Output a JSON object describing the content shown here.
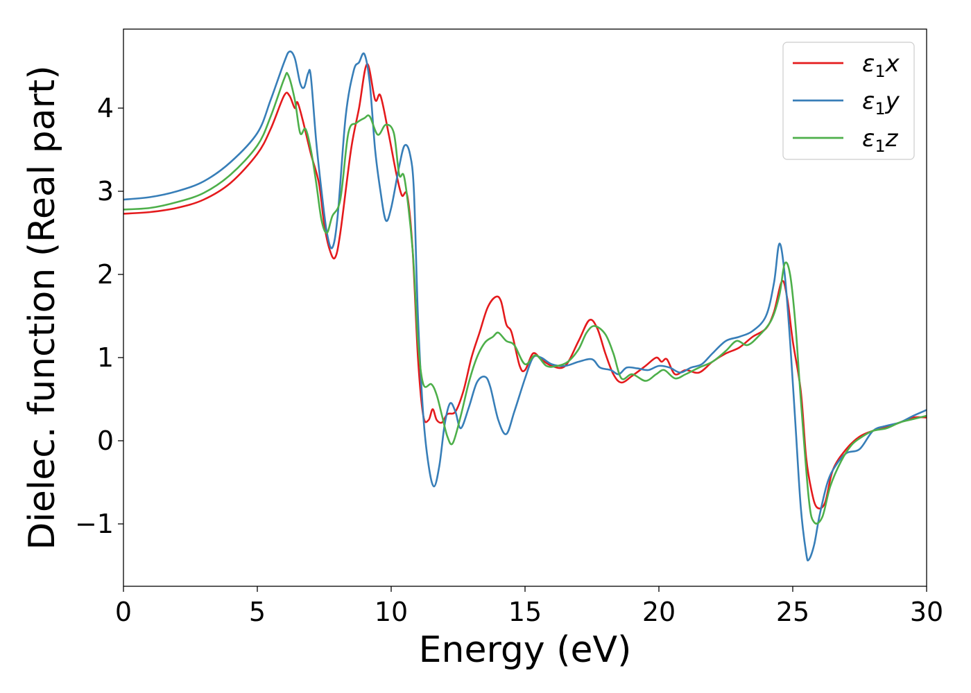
{
  "chart_data": {
    "type": "line",
    "title": "",
    "xlabel": "Energy (eV)",
    "ylabel": "Dielec. function (Real part)",
    "xlim": [
      0,
      30
    ],
    "ylim": [
      -1.75,
      4.95
    ],
    "xticks": [
      0,
      5,
      10,
      15,
      20,
      25,
      30
    ],
    "xtick_labels": [
      "0",
      "5",
      "10",
      "15",
      "20",
      "25",
      "30"
    ],
    "yticks": [
      -1,
      0,
      1,
      2,
      3,
      4
    ],
    "ytick_labels": [
      "−1",
      "0",
      "1",
      "2",
      "3",
      "4"
    ],
    "grid": false,
    "legend_position": "top-right",
    "series": [
      {
        "name": "ε₁x",
        "legend_main": "ε",
        "legend_sub": "1",
        "legend_var": "x",
        "color": "#e41a1c",
        "points": [
          [
            0,
            2.73
          ],
          [
            1,
            2.75
          ],
          [
            2,
            2.8
          ],
          [
            3,
            2.9
          ],
          [
            4,
            3.1
          ],
          [
            5,
            3.45
          ],
          [
            5.5,
            3.75
          ],
          [
            6,
            4.15
          ],
          [
            6.2,
            4.15
          ],
          [
            6.4,
            4.0
          ],
          [
            6.5,
            4.07
          ],
          [
            6.7,
            3.85
          ],
          [
            7,
            3.45
          ],
          [
            7.3,
            3.1
          ],
          [
            7.5,
            2.6
          ],
          [
            7.7,
            2.3
          ],
          [
            7.9,
            2.2
          ],
          [
            8.1,
            2.5
          ],
          [
            8.5,
            3.5
          ],
          [
            8.8,
            4.0
          ],
          [
            9.1,
            4.53
          ],
          [
            9.4,
            4.1
          ],
          [
            9.6,
            4.15
          ],
          [
            9.9,
            3.7
          ],
          [
            10.2,
            3.2
          ],
          [
            10.4,
            2.95
          ],
          [
            10.6,
            2.95
          ],
          [
            10.8,
            2.3
          ],
          [
            11.0,
            1.0
          ],
          [
            11.2,
            0.3
          ],
          [
            11.4,
            0.25
          ],
          [
            11.55,
            0.38
          ],
          [
            11.7,
            0.25
          ],
          [
            11.9,
            0.22
          ],
          [
            12.1,
            0.32
          ],
          [
            12.4,
            0.35
          ],
          [
            12.7,
            0.6
          ],
          [
            13.0,
            1.0
          ],
          [
            13.3,
            1.3
          ],
          [
            13.6,
            1.6
          ],
          [
            13.9,
            1.73
          ],
          [
            14.1,
            1.68
          ],
          [
            14.3,
            1.4
          ],
          [
            14.5,
            1.3
          ],
          [
            14.8,
            0.9
          ],
          [
            15.0,
            0.85
          ],
          [
            15.3,
            1.05
          ],
          [
            15.6,
            0.98
          ],
          [
            16.0,
            0.9
          ],
          [
            16.5,
            0.9
          ],
          [
            17.0,
            1.2
          ],
          [
            17.4,
            1.45
          ],
          [
            17.7,
            1.35
          ],
          [
            18.0,
            1.05
          ],
          [
            18.3,
            0.8
          ],
          [
            18.6,
            0.7
          ],
          [
            19.0,
            0.78
          ],
          [
            19.5,
            0.9
          ],
          [
            19.9,
            1.0
          ],
          [
            20.1,
            0.95
          ],
          [
            20.3,
            0.98
          ],
          [
            20.6,
            0.8
          ],
          [
            21.0,
            0.85
          ],
          [
            21.5,
            0.82
          ],
          [
            22.0,
            0.95
          ],
          [
            22.5,
            1.05
          ],
          [
            23.0,
            1.12
          ],
          [
            23.5,
            1.25
          ],
          [
            24.0,
            1.35
          ],
          [
            24.3,
            1.55
          ],
          [
            24.6,
            1.92
          ],
          [
            24.8,
            1.7
          ],
          [
            25.0,
            1.2
          ],
          [
            25.3,
            0.6
          ],
          [
            25.5,
            -0.2
          ],
          [
            25.7,
            -0.6
          ],
          [
            25.9,
            -0.8
          ],
          [
            26.2,
            -0.75
          ],
          [
            26.5,
            -0.35
          ],
          [
            27.0,
            -0.1
          ],
          [
            27.5,
            0.05
          ],
          [
            28.0,
            0.12
          ],
          [
            28.5,
            0.16
          ],
          [
            29.0,
            0.22
          ],
          [
            29.5,
            0.28
          ],
          [
            30.0,
            0.28
          ]
        ]
      },
      {
        "name": "ε₁y",
        "legend_main": "ε",
        "legend_sub": "1",
        "legend_var": "y",
        "color": "#377eb8",
        "points": [
          [
            0,
            2.9
          ],
          [
            1,
            2.93
          ],
          [
            2,
            3.0
          ],
          [
            3,
            3.12
          ],
          [
            4,
            3.35
          ],
          [
            5,
            3.7
          ],
          [
            5.5,
            4.1
          ],
          [
            6,
            4.55
          ],
          [
            6.2,
            4.68
          ],
          [
            6.4,
            4.6
          ],
          [
            6.6,
            4.3
          ],
          [
            6.75,
            4.25
          ],
          [
            6.9,
            4.42
          ],
          [
            7.0,
            4.38
          ],
          [
            7.2,
            3.6
          ],
          [
            7.4,
            3.0
          ],
          [
            7.6,
            2.5
          ],
          [
            7.8,
            2.32
          ],
          [
            8.0,
            2.7
          ],
          [
            8.3,
            3.9
          ],
          [
            8.6,
            4.45
          ],
          [
            8.8,
            4.55
          ],
          [
            9.0,
            4.65
          ],
          [
            9.2,
            4.3
          ],
          [
            9.4,
            3.5
          ],
          [
            9.6,
            3.0
          ],
          [
            9.8,
            2.65
          ],
          [
            10.0,
            2.8
          ],
          [
            10.3,
            3.3
          ],
          [
            10.5,
            3.55
          ],
          [
            10.7,
            3.45
          ],
          [
            10.85,
            3.0
          ],
          [
            11.0,
            1.5
          ],
          [
            11.2,
            0.3
          ],
          [
            11.4,
            -0.3
          ],
          [
            11.6,
            -0.55
          ],
          [
            11.8,
            -0.3
          ],
          [
            12.0,
            0.2
          ],
          [
            12.2,
            0.45
          ],
          [
            12.4,
            0.35
          ],
          [
            12.6,
            0.15
          ],
          [
            12.9,
            0.4
          ],
          [
            13.2,
            0.7
          ],
          [
            13.5,
            0.77
          ],
          [
            13.7,
            0.65
          ],
          [
            14.0,
            0.25
          ],
          [
            14.3,
            0.08
          ],
          [
            14.6,
            0.35
          ],
          [
            15.0,
            0.75
          ],
          [
            15.3,
            1.0
          ],
          [
            15.6,
            1.0
          ],
          [
            16.0,
            0.92
          ],
          [
            16.5,
            0.9
          ],
          [
            17.0,
            0.95
          ],
          [
            17.5,
            0.98
          ],
          [
            17.8,
            0.88
          ],
          [
            18.2,
            0.85
          ],
          [
            18.5,
            0.8
          ],
          [
            18.8,
            0.88
          ],
          [
            19.2,
            0.87
          ],
          [
            19.6,
            0.85
          ],
          [
            20.0,
            0.9
          ],
          [
            20.4,
            0.88
          ],
          [
            20.8,
            0.82
          ],
          [
            21.2,
            0.88
          ],
          [
            21.6,
            0.92
          ],
          [
            22.0,
            1.05
          ],
          [
            22.5,
            1.2
          ],
          [
            23.0,
            1.25
          ],
          [
            23.5,
            1.32
          ],
          [
            24.0,
            1.5
          ],
          [
            24.3,
            1.9
          ],
          [
            24.5,
            2.37
          ],
          [
            24.7,
            2.0
          ],
          [
            24.9,
            1.2
          ],
          [
            25.1,
            0.2
          ],
          [
            25.3,
            -0.8
          ],
          [
            25.5,
            -1.35
          ],
          [
            25.6,
            -1.43
          ],
          [
            25.8,
            -1.25
          ],
          [
            26.0,
            -0.9
          ],
          [
            26.3,
            -0.5
          ],
          [
            26.6,
            -0.3
          ],
          [
            27.0,
            -0.15
          ],
          [
            27.5,
            -0.1
          ],
          [
            28.0,
            0.12
          ],
          [
            28.5,
            0.18
          ],
          [
            29.0,
            0.22
          ],
          [
            29.5,
            0.3
          ],
          [
            30.0,
            0.37
          ]
        ]
      },
      {
        "name": "ε₁z",
        "legend_main": "ε",
        "legend_sub": "1",
        "legend_var": "z",
        "color": "#4daf4a",
        "points": [
          [
            0,
            2.78
          ],
          [
            1,
            2.8
          ],
          [
            2,
            2.87
          ],
          [
            3,
            2.98
          ],
          [
            4,
            3.2
          ],
          [
            5,
            3.55
          ],
          [
            5.5,
            3.9
          ],
          [
            6,
            4.35
          ],
          [
            6.15,
            4.4
          ],
          [
            6.4,
            4.1
          ],
          [
            6.6,
            3.7
          ],
          [
            6.8,
            3.75
          ],
          [
            7.0,
            3.5
          ],
          [
            7.2,
            3.1
          ],
          [
            7.4,
            2.65
          ],
          [
            7.6,
            2.5
          ],
          [
            7.8,
            2.7
          ],
          [
            8.1,
            2.9
          ],
          [
            8.4,
            3.7
          ],
          [
            8.7,
            3.82
          ],
          [
            9.0,
            3.88
          ],
          [
            9.2,
            3.9
          ],
          [
            9.5,
            3.68
          ],
          [
            9.8,
            3.8
          ],
          [
            10.1,
            3.7
          ],
          [
            10.3,
            3.2
          ],
          [
            10.5,
            3.15
          ],
          [
            10.8,
            2.3
          ],
          [
            11.0,
            1.2
          ],
          [
            11.2,
            0.68
          ],
          [
            11.5,
            0.68
          ],
          [
            11.7,
            0.55
          ],
          [
            11.9,
            0.3
          ],
          [
            12.1,
            0.05
          ],
          [
            12.3,
            -0.03
          ],
          [
            12.6,
            0.3
          ],
          [
            12.9,
            0.7
          ],
          [
            13.2,
            1.0
          ],
          [
            13.5,
            1.18
          ],
          [
            13.8,
            1.25
          ],
          [
            14.0,
            1.3
          ],
          [
            14.3,
            1.2
          ],
          [
            14.6,
            1.15
          ],
          [
            15.0,
            0.92
          ],
          [
            15.4,
            1.03
          ],
          [
            15.8,
            0.9
          ],
          [
            16.2,
            0.9
          ],
          [
            16.6,
            0.95
          ],
          [
            17.0,
            1.1
          ],
          [
            17.3,
            1.3
          ],
          [
            17.6,
            1.38
          ],
          [
            18.0,
            1.28
          ],
          [
            18.3,
            1.05
          ],
          [
            18.6,
            0.75
          ],
          [
            19.0,
            0.8
          ],
          [
            19.5,
            0.72
          ],
          [
            19.9,
            0.8
          ],
          [
            20.2,
            0.85
          ],
          [
            20.6,
            0.75
          ],
          [
            21.0,
            0.8
          ],
          [
            21.5,
            0.88
          ],
          [
            22.0,
            0.95
          ],
          [
            22.5,
            1.08
          ],
          [
            22.9,
            1.2
          ],
          [
            23.3,
            1.15
          ],
          [
            23.7,
            1.25
          ],
          [
            24.2,
            1.45
          ],
          [
            24.5,
            1.75
          ],
          [
            24.7,
            2.13
          ],
          [
            24.9,
            2.0
          ],
          [
            25.1,
            1.4
          ],
          [
            25.3,
            0.5
          ],
          [
            25.6,
            -0.7
          ],
          [
            25.8,
            -0.98
          ],
          [
            26.1,
            -0.92
          ],
          [
            26.4,
            -0.55
          ],
          [
            26.8,
            -0.25
          ],
          [
            27.2,
            -0.05
          ],
          [
            27.6,
            0.05
          ],
          [
            28.0,
            0.12
          ],
          [
            28.5,
            0.15
          ],
          [
            29.0,
            0.22
          ],
          [
            29.5,
            0.26
          ],
          [
            30.0,
            0.3
          ]
        ]
      }
    ]
  }
}
